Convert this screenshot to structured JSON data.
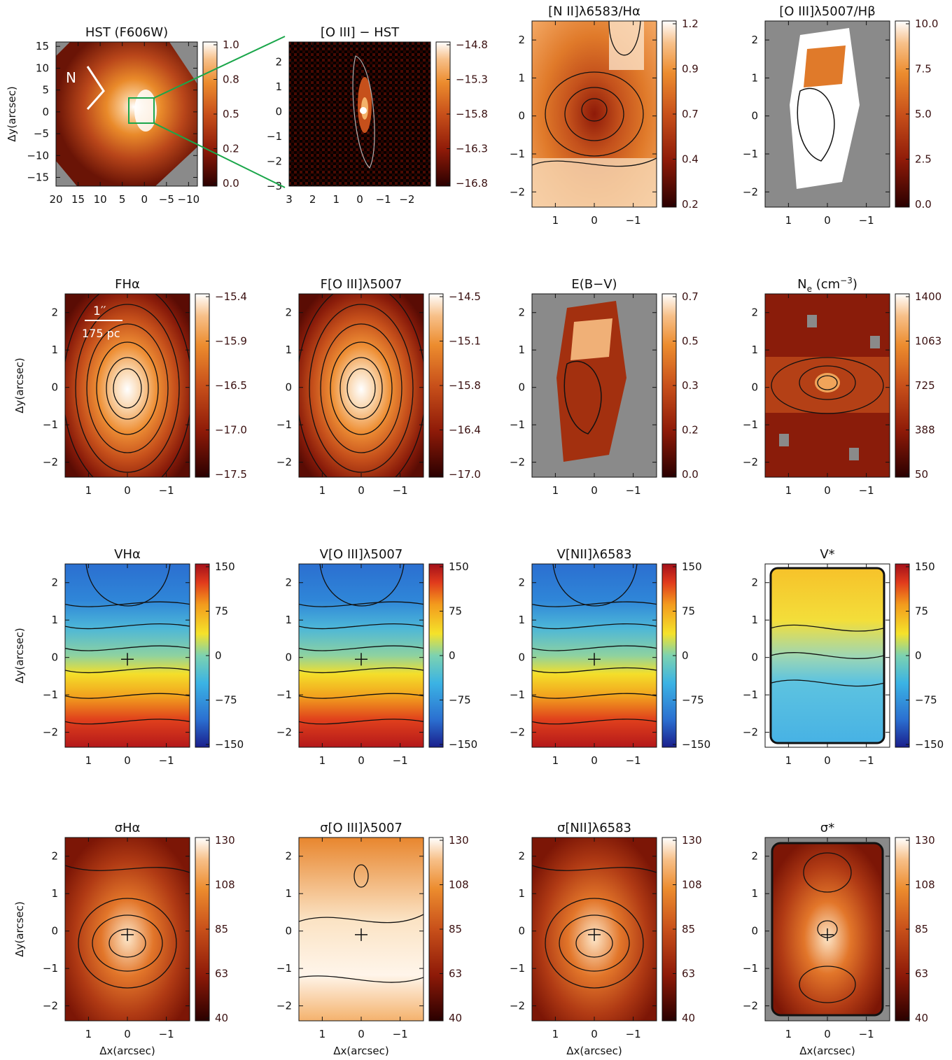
{
  "figure": {
    "xlabel": "Δx(arcsec)",
    "ylabel": "Δy(arcsec)"
  },
  "chart_data": [
    {
      "type": "heatmap",
      "title": "HST (F606W)",
      "colormap": "heat",
      "colorbar_ticks": [
        "1.0",
        "0.8",
        "0.5",
        "0.2",
        "0.0"
      ],
      "xticks": [
        "20",
        "15",
        "10",
        "5",
        "0",
        "−5",
        "−10"
      ],
      "yticks": [
        "15",
        "10",
        "5",
        "0",
        "−5",
        "−10",
        "−15"
      ],
      "xrange": [
        20,
        -12
      ],
      "yrange": [
        -17,
        16
      ],
      "annotations": [
        "N"
      ],
      "scene": "hst"
    },
    {
      "type": "heatmap",
      "title": "[O III] − HST",
      "colormap": "heat",
      "colorbar_ticks": [
        "−14.8",
        "−15.3",
        "−15.8",
        "−16.3",
        "−16.8"
      ],
      "xticks": [
        "3",
        "2",
        "1",
        "0",
        "−1",
        "−2"
      ],
      "yticks": [
        "2",
        "1",
        "0",
        "−1",
        "−2",
        "−3"
      ],
      "xrange": [
        3,
        -3
      ],
      "yrange": [
        -3,
        2.8
      ],
      "scene": "oiii_hst"
    },
    {
      "type": "heatmap",
      "title": "[N II]λ6583/Hα",
      "colormap": "heat",
      "colorbar_ticks": [
        "1.2",
        "0.9",
        "0.7",
        "0.4",
        "0.2"
      ],
      "xticks": [
        "1",
        "0",
        "−1"
      ],
      "yticks": [
        "2",
        "1",
        "0",
        "−1",
        "−2"
      ],
      "xrange": [
        1.6,
        -1.6
      ],
      "yrange": [
        -2.4,
        2.5
      ],
      "scene": "nii_ha"
    },
    {
      "type": "heatmap",
      "title": "[O III]λ5007/Hβ",
      "colormap": "heat",
      "colorbar_ticks": [
        "10.0",
        "7.5",
        "5.0",
        "2.5",
        "0.0"
      ],
      "xticks": [
        "1",
        "0",
        "−1"
      ],
      "yticks": [
        "2",
        "1",
        "0",
        "−1",
        "−2"
      ],
      "xrange": [
        1.6,
        -1.6
      ],
      "yrange": [
        -2.4,
        2.5
      ],
      "scene": "oiii_hb"
    },
    {
      "type": "heatmap",
      "title": "FHα",
      "colormap": "heat",
      "colorbar_ticks": [
        "−15.4",
        "−15.9",
        "−16.5",
        "−17.0",
        "−17.5"
      ],
      "xticks": [
        "1",
        "0",
        "−1"
      ],
      "yticks": [
        "2",
        "1",
        "0",
        "−1",
        "−2"
      ],
      "xrange": [
        1.6,
        -1.6
      ],
      "yrange": [
        -2.4,
        2.5
      ],
      "annotations": [
        "1′′",
        "175 pc"
      ],
      "scene": "flux"
    },
    {
      "type": "heatmap",
      "title": "F[O III]λ5007",
      "colormap": "heat",
      "colorbar_ticks": [
        "−14.5",
        "−15.1",
        "−15.8",
        "−16.4",
        "−17.0"
      ],
      "xticks": [
        "1",
        "0",
        "−1"
      ],
      "yticks": [
        "2",
        "1",
        "0",
        "−1",
        "−2"
      ],
      "xrange": [
        1.6,
        -1.6
      ],
      "yrange": [
        -2.4,
        2.5
      ],
      "scene": "flux"
    },
    {
      "type": "heatmap",
      "title": "E(B−V)",
      "colormap": "heat",
      "colorbar_ticks": [
        "0.7",
        "0.5",
        "0.3",
        "0.2",
        "0.0"
      ],
      "xticks": [
        "1",
        "0",
        "−1"
      ],
      "yticks": [
        "2",
        "1",
        "0",
        "−1",
        "−2"
      ],
      "xrange": [
        1.6,
        -1.6
      ],
      "yrange": [
        -2.4,
        2.5
      ],
      "scene": "ebv"
    },
    {
      "type": "heatmap",
      "title": "Ne (cm−3)",
      "title_sub": "e",
      "title_sup": "−3",
      "colormap": "heat",
      "colorbar_ticks": [
        "1400",
        "1063",
        "725",
        "388",
        "50"
      ],
      "xticks": [
        "1",
        "0",
        "−1"
      ],
      "yticks": [
        "2",
        "1",
        "0",
        "−1",
        "−2"
      ],
      "xrange": [
        1.6,
        -1.6
      ],
      "yrange": [
        -2.4,
        2.5
      ],
      "scene": "ne"
    },
    {
      "type": "heatmap",
      "title": "VHα",
      "colormap": "velocity",
      "colorbar_ticks": [
        "150",
        "75",
        "0",
        "−75",
        "−150"
      ],
      "xticks": [
        "1",
        "0",
        "−1"
      ],
      "yticks": [
        "2",
        "1",
        "0",
        "−1",
        "−2"
      ],
      "xrange": [
        1.6,
        -1.6
      ],
      "yrange": [
        -2.4,
        2.5
      ],
      "scene": "vgas",
      "slit": true
    },
    {
      "type": "heatmap",
      "title": "V[O III]λ5007",
      "colormap": "velocity",
      "colorbar_ticks": [
        "150",
        "75",
        "0",
        "−75",
        "−150"
      ],
      "xticks": [
        "1",
        "0",
        "−1"
      ],
      "yticks": [
        "2",
        "1",
        "0",
        "−1",
        "−2"
      ],
      "xrange": [
        1.6,
        -1.6
      ],
      "yrange": [
        -2.4,
        2.5
      ],
      "scene": "vgas"
    },
    {
      "type": "heatmap",
      "title": "V[NII]λ6583",
      "colormap": "velocity",
      "colorbar_ticks": [
        "150",
        "75",
        "0",
        "−75",
        "−150"
      ],
      "xticks": [
        "1",
        "0",
        "−1"
      ],
      "yticks": [
        "2",
        "1",
        "0",
        "−1",
        "−2"
      ],
      "xrange": [
        1.6,
        -1.6
      ],
      "yrange": [
        -2.4,
        2.5
      ],
      "scene": "vgas"
    },
    {
      "type": "heatmap",
      "title": "V*",
      "colormap": "velocity",
      "colorbar_ticks": [
        "150",
        "75",
        "0",
        "−75",
        "−150"
      ],
      "xticks": [
        "1",
        "0",
        "−1"
      ],
      "yticks": [
        "2",
        "1",
        "0",
        "−1",
        "−2"
      ],
      "xrange": [
        1.6,
        -1.6
      ],
      "yrange": [
        -2.4,
        2.5
      ],
      "scene": "vstar",
      "slit": true
    },
    {
      "type": "heatmap",
      "title": "σHα",
      "colormap": "heat",
      "colorbar_ticks": [
        "130",
        "108",
        "85",
        "63",
        "40"
      ],
      "xticks": [
        "1",
        "0",
        "−1"
      ],
      "yticks": [
        "2",
        "1",
        "0",
        "−1",
        "−2"
      ],
      "xrange": [
        1.6,
        -1.6
      ],
      "yrange": [
        -2.4,
        2.5
      ],
      "scene": "sigma_ha"
    },
    {
      "type": "heatmap",
      "title": "σ[O III]λ5007",
      "colormap": "heat",
      "colorbar_ticks": [
        "130",
        "108",
        "85",
        "63",
        "40"
      ],
      "xticks": [
        "1",
        "0",
        "−1"
      ],
      "yticks": [
        "2",
        "1",
        "0",
        "−1",
        "−2"
      ],
      "xrange": [
        1.6,
        -1.6
      ],
      "yrange": [
        -2.4,
        2.5
      ],
      "scene": "sigma_oiii"
    },
    {
      "type": "heatmap",
      "title": "σ[NII]λ6583",
      "colormap": "heat",
      "colorbar_ticks": [
        "130",
        "108",
        "85",
        "63",
        "40"
      ],
      "xticks": [
        "1",
        "0",
        "−1"
      ],
      "yticks": [
        "2",
        "1",
        "0",
        "−1",
        "−2"
      ],
      "xrange": [
        1.6,
        -1.6
      ],
      "yrange": [
        -2.4,
        2.5
      ],
      "scene": "sigma_nii"
    },
    {
      "type": "heatmap",
      "title": "σ*",
      "colormap": "heat",
      "colorbar_ticks": [
        "130",
        "108",
        "85",
        "63",
        "40"
      ],
      "xticks": [
        "1",
        "0",
        "−1"
      ],
      "yticks": [
        "2",
        "1",
        "0",
        "−1",
        "−2"
      ],
      "xrange": [
        1.6,
        -1.6
      ],
      "yrange": [
        -2.4,
        2.5
      ],
      "scene": "sigma_star"
    }
  ]
}
